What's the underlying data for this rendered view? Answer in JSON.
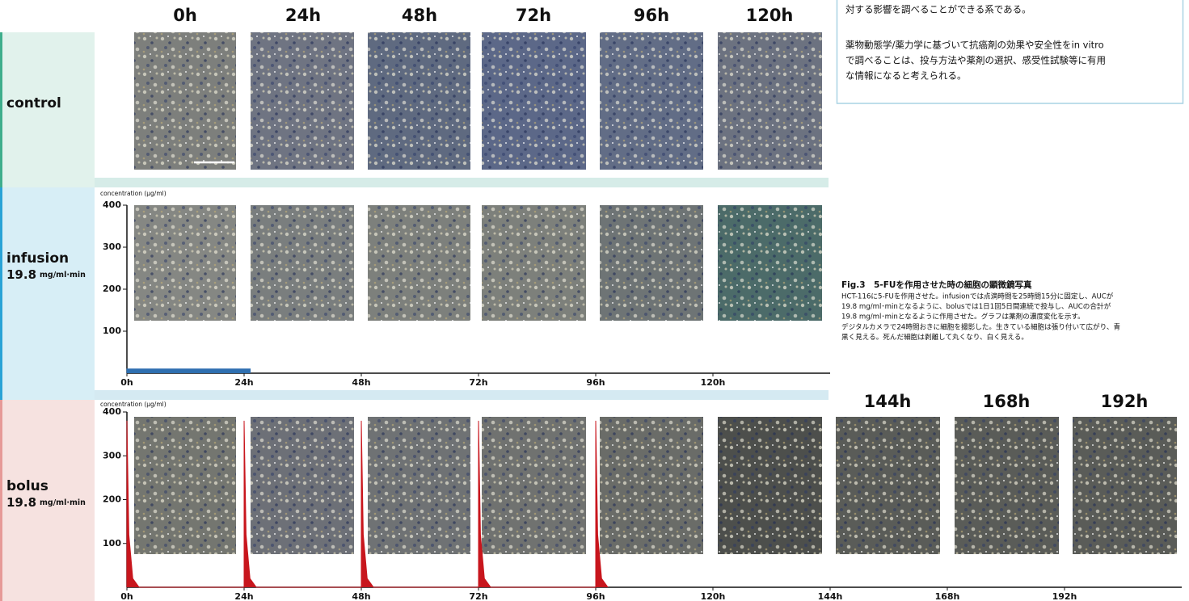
{
  "header": {
    "columns": [
      "0h",
      "24h",
      "48h",
      "72h",
      "96h",
      "120h"
    ],
    "extra_columns": [
      "144h",
      "168h",
      "192h"
    ]
  },
  "rows": [
    {
      "label": "control"
    },
    {
      "label": "infusion",
      "dose": "19.8",
      "unit": "mg/ml·min"
    },
    {
      "label": "bolus",
      "dose": "19.8",
      "unit": "mg/ml·min"
    }
  ],
  "notes": [
    "対する影響を調べることができる系である。",
    "薬物動態学/薬力学に基づいて抗癌剤の効果や安全性をin vitro",
    "で調べることは、投与方法や薬剤の選択、感受性試験等に有用",
    "な情報になると考えられる。"
  ],
  "caption": {
    "title": "Fig.3　5-FUを作用させた時の細胞の顕微鏡写真",
    "lines": [
      "HCT-116に5-FUを作用させた。infusionでは点滴時間を25時間15分に固定し、AUCが",
      "19.8 mg/ml･minとなるように、bolusでは1日1回5日間連続で投与し、AUCの合計が",
      "19.8 mg/ml･minとなるように作用させた。グラフは薬剤の濃度変化を示す。",
      "デジタルカメラで24時間おきに細胞を撮影した。生きている細胞は張り付いて広がり、青",
      "黒く見える。死んだ細胞は剥離して丸くなり、白く見える。"
    ]
  },
  "chart_data": [
    {
      "type": "area",
      "y_label": "concentration (μg/ml)",
      "color": "#2e6fb0",
      "x": [
        0,
        0,
        25.25,
        25.25
      ],
      "values": [
        0,
        10,
        10,
        0
      ],
      "xlim": [
        0,
        144
      ],
      "xticks": [
        {
          "value": 0,
          "label": "0h"
        },
        {
          "value": 24,
          "label": "24h"
        },
        {
          "value": 48,
          "label": "48h"
        },
        {
          "value": 72,
          "label": "72h"
        },
        {
          "value": 96,
          "label": "96h"
        },
        {
          "value": 120,
          "label": "120h"
        }
      ],
      "ylim": [
        0,
        400
      ],
      "yticks": [
        100,
        200,
        300,
        400
      ]
    },
    {
      "type": "area",
      "y_label": "concentration (μg/ml)",
      "color": "#c8161d",
      "x": [
        0,
        0,
        0.4,
        1.2,
        2.5,
        24,
        24,
        24.4,
        25.2,
        26.5,
        48,
        48,
        48.4,
        49.2,
        50.5,
        72,
        72,
        72.4,
        73.2,
        74.5,
        96,
        96,
        96.4,
        97.2,
        98.5
      ],
      "values": [
        0,
        380,
        120,
        20,
        0,
        0,
        380,
        120,
        20,
        0,
        0,
        380,
        120,
        20,
        0,
        0,
        380,
        120,
        20,
        0,
        0,
        380,
        120,
        20,
        0
      ],
      "xlim": [
        0,
        216
      ],
      "xticks": [
        {
          "value": 0,
          "label": "0h"
        },
        {
          "value": 24,
          "label": "24h"
        },
        {
          "value": 48,
          "label": "48h"
        },
        {
          "value": 72,
          "label": "72h"
        },
        {
          "value": 96,
          "label": "96h"
        },
        {
          "value": 120,
          "label": "120h"
        },
        {
          "value": 144,
          "label": "144h"
        },
        {
          "value": 168,
          "label": "168h"
        },
        {
          "value": 192,
          "label": "192h"
        }
      ],
      "ylim": [
        0,
        400
      ],
      "yticks": [
        100,
        200,
        300,
        400
      ]
    }
  ]
}
